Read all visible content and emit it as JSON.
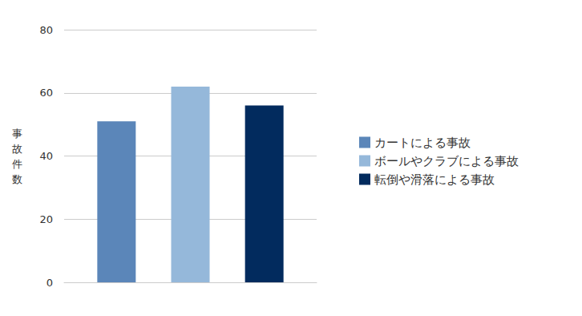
{
  "chart_data": {
    "type": "bar",
    "ylabel": "事故件数",
    "categories": [
      null
    ],
    "series": [
      {
        "name": "カートによる事故",
        "color": "#5b86b9",
        "values": [
          51
        ]
      },
      {
        "name": "ボールやクラブによる事故",
        "color": "#95b8da",
        "values": [
          62
        ]
      },
      {
        "name": "転倒や滑落による事故",
        "color": "#022b5e",
        "values": [
          56
        ]
      }
    ],
    "ylim": [
      0,
      80
    ],
    "yticks": [
      0,
      20,
      40,
      60,
      80
    ],
    "grid": true,
    "legend": "right",
    "tick_labels": "y"
  }
}
